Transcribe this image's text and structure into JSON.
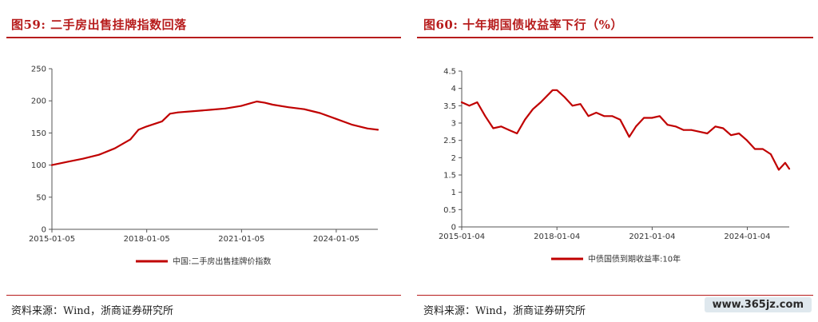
{
  "left": {
    "title": "图59:  二手房出售挂牌指数回落",
    "source": "资料来源：Wind，浙商证券研究所"
  },
  "right": {
    "title": "图60:  十年期国债收益率下行（%）",
    "source": "资料来源：Wind，浙商证券研究所"
  },
  "watermark": "www.365jz.com",
  "colors": {
    "accent": "#b71c1c",
    "line": "#c00000"
  },
  "chart_data": [
    {
      "type": "line",
      "title": "",
      "x_ticks": [
        "2015-01-05",
        "2018-01-05",
        "2021-01-05",
        "2024-01-05"
      ],
      "y_ticks": [
        "0",
        "50",
        "100",
        "150",
        "200",
        "250"
      ],
      "ylim": [
        0,
        250
      ],
      "xlim": [
        "2015-01-05",
        "2025-04-30"
      ],
      "grid": false,
      "legend_position": "bottom",
      "series": [
        {
          "name": "中国:二手房出售挂牌价指数",
          "x": [
            "2015-01-05",
            "2015-07-01",
            "2016-01-01",
            "2016-07-01",
            "2017-01-01",
            "2017-07-01",
            "2017-10-01",
            "2018-01-01",
            "2018-07-01",
            "2018-10-01",
            "2019-01-01",
            "2019-07-01",
            "2020-01-01",
            "2020-07-01",
            "2021-01-01",
            "2021-07-01",
            "2021-10-01",
            "2022-01-01",
            "2022-07-01",
            "2023-01-01",
            "2023-07-01",
            "2024-01-01",
            "2024-07-01",
            "2025-01-01",
            "2025-04-30"
          ],
          "y": [
            100,
            105,
            110,
            116,
            126,
            140,
            155,
            160,
            168,
            180,
            182,
            184,
            186,
            188,
            192,
            199,
            197,
            194,
            190,
            187,
            181,
            172,
            163,
            157,
            155
          ]
        }
      ]
    },
    {
      "type": "line",
      "title": "",
      "x_ticks": [
        "2015-01-04",
        "2018-01-04",
        "2021-01-04",
        "2024-01-04"
      ],
      "y_ticks": [
        "0",
        "0.5",
        "1",
        "1.5",
        "2",
        "2.5",
        "3",
        "3.5",
        "4",
        "4.5"
      ],
      "ylim": [
        0,
        4.5
      ],
      "xlim": [
        "2015-01-04",
        "2025-05-01"
      ],
      "grid": false,
      "legend_position": "bottom",
      "series": [
        {
          "name": "中债国债到期收益率:10年",
          "x": [
            "2015-01-04",
            "2015-04-01",
            "2015-07-01",
            "2015-10-01",
            "2016-01-01",
            "2016-04-01",
            "2016-07-01",
            "2016-10-01",
            "2017-01-01",
            "2017-04-01",
            "2017-07-01",
            "2017-11-15",
            "2018-01-04",
            "2018-04-01",
            "2018-07-01",
            "2018-10-01",
            "2019-01-01",
            "2019-04-01",
            "2019-07-01",
            "2019-10-01",
            "2020-01-01",
            "2020-04-15",
            "2020-07-01",
            "2020-10-01",
            "2021-01-01",
            "2021-04-01",
            "2021-07-01",
            "2021-10-01",
            "2022-01-01",
            "2022-04-01",
            "2022-07-01",
            "2022-10-01",
            "2023-01-01",
            "2023-04-01",
            "2023-07-01",
            "2023-10-01",
            "2024-01-01",
            "2024-04-01",
            "2024-07-01",
            "2024-10-01",
            "2025-01-01",
            "2025-03-15",
            "2025-05-01"
          ],
          "y": [
            3.6,
            3.5,
            3.6,
            3.2,
            2.85,
            2.9,
            2.8,
            2.7,
            3.1,
            3.4,
            3.6,
            3.95,
            3.95,
            3.75,
            3.5,
            3.55,
            3.2,
            3.3,
            3.2,
            3.2,
            3.1,
            2.6,
            2.9,
            3.15,
            3.15,
            3.2,
            2.95,
            2.9,
            2.8,
            2.8,
            2.75,
            2.7,
            2.9,
            2.85,
            2.65,
            2.7,
            2.5,
            2.25,
            2.25,
            2.1,
            1.65,
            1.85,
            1.68
          ]
        }
      ]
    }
  ]
}
